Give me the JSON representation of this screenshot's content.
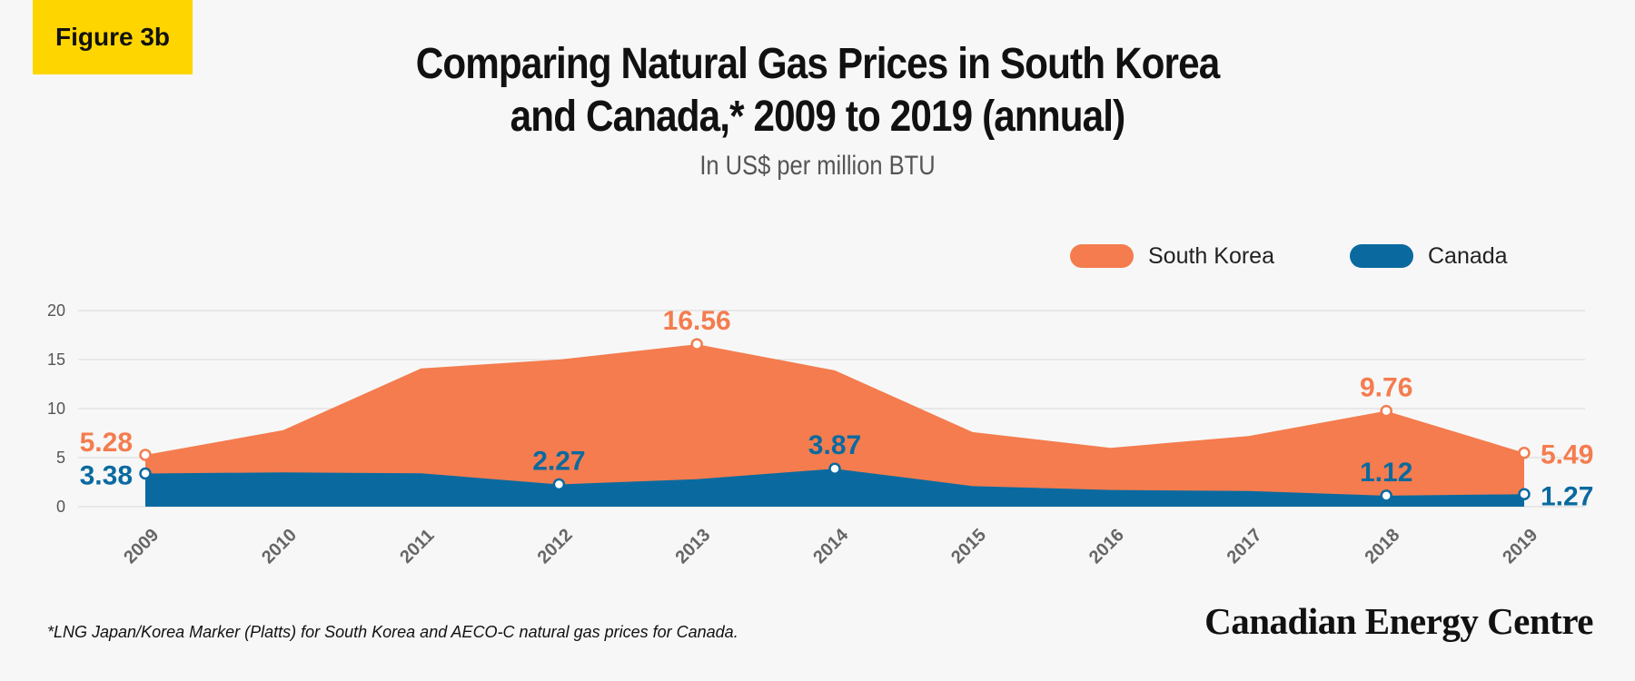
{
  "badge": "Figure 3b",
  "title_line1": "Comparing Natural Gas Prices in South Korea",
  "title_line2": "and Canada,* 2009 to 2019 (annual)",
  "subtitle": "In US$ per million BTU",
  "footnote": "*LNG Japan/Korea Marker (Platts) for South Korea and AECO-C natural gas prices for Canada.",
  "brand": "Canadian Energy Centre",
  "colors": {
    "south_korea": "#f47c4e",
    "canada": "#0a6aa0",
    "badge": "#ffd500"
  },
  "chart_data": {
    "type": "area",
    "title": "Comparing Natural Gas Prices in South Korea and Canada,* 2009 to 2019 (annual)",
    "subtitle": "In US$ per million BTU",
    "x": [
      "2009",
      "2010",
      "2011",
      "2012",
      "2013",
      "2014",
      "2015",
      "2016",
      "2017",
      "2018",
      "2019"
    ],
    "yticks": [
      0,
      5,
      10,
      15,
      20
    ],
    "ylim": [
      0,
      20
    ],
    "grid": true,
    "legend_position": "top-right",
    "series": [
      {
        "name": "South Korea",
        "color": "#f47c4e",
        "values": [
          5.28,
          7.8,
          14.1,
          15.0,
          16.56,
          13.9,
          7.6,
          6.0,
          7.2,
          9.76,
          5.49
        ],
        "labels": [
          {
            "index": 0,
            "text": "5.28"
          },
          {
            "index": 4,
            "text": "16.56"
          },
          {
            "index": 9,
            "text": "9.76"
          },
          {
            "index": 10,
            "text": "5.49"
          }
        ]
      },
      {
        "name": "Canada",
        "color": "#0a6aa0",
        "values": [
          3.38,
          3.5,
          3.4,
          2.27,
          2.8,
          3.87,
          2.1,
          1.7,
          1.6,
          1.12,
          1.27
        ],
        "labels": [
          {
            "index": 0,
            "text": "3.38"
          },
          {
            "index": 3,
            "text": "2.27"
          },
          {
            "index": 5,
            "text": "3.87"
          },
          {
            "index": 9,
            "text": "1.12"
          },
          {
            "index": 10,
            "text": "1.27"
          }
        ]
      }
    ]
  }
}
